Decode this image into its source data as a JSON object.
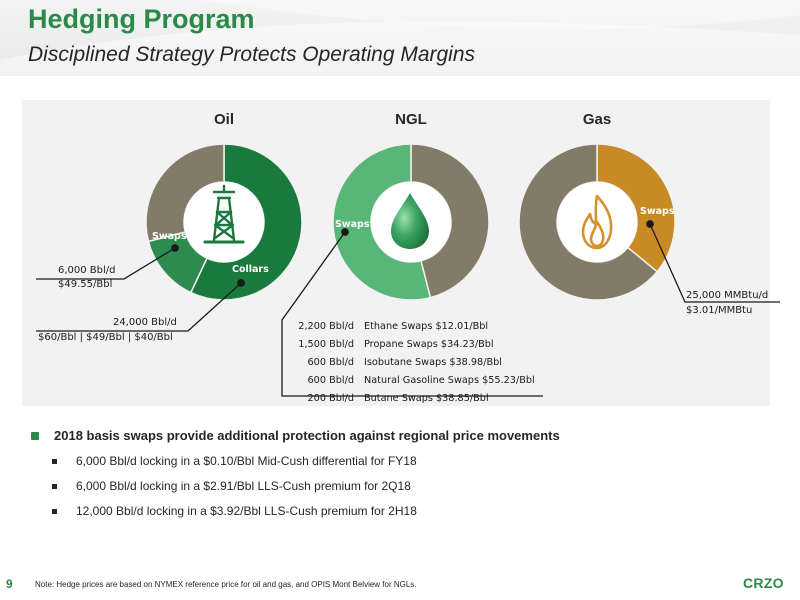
{
  "header": {
    "title": "Hedging Program",
    "subtitle": "Disciplined Strategy Protects Operating Margins"
  },
  "colors": {
    "brand_green": "#2a8a4a",
    "dark_green": "#1a7a3e",
    "light_green": "#58b678",
    "taupe": "#847a68",
    "gold": "#c88a24"
  },
  "icons": [
    "oil-derrick-icon",
    "droplet-icon",
    "flame-icon"
  ],
  "charts": [
    {
      "title": "Oil",
      "segments": [
        {
          "label": "Collars",
          "share": 0.57,
          "color": "#1a7a3e"
        },
        {
          "label": "Swaps",
          "share": 0.14,
          "color": "#2e8b50"
        },
        {
          "label": "",
          "share": 0.29,
          "color": "#847a68"
        }
      ],
      "callouts": [
        {
          "line1": "6,000 Bbl/d",
          "line2": "$49.55/Bbl"
        },
        {
          "line1": "24,000 Bbl/d",
          "line2": "$60/Bbl | $49/Bbl | $40/Bbl"
        }
      ]
    },
    {
      "title": "NGL",
      "segments": [
        {
          "label": "",
          "share": 0.46,
          "color": "#847a68"
        },
        {
          "label": "Swaps",
          "share": 0.54,
          "color": "#58b678"
        }
      ],
      "table": [
        {
          "volume": "2,200 Bbl/d",
          "desc": "Ethane Swaps $12.01/Bbl"
        },
        {
          "volume": "1,500 Bbl/d",
          "desc": "Propane Swaps $34.23/Bbl"
        },
        {
          "volume": "600 Bbl/d",
          "desc": "Isobutane Swaps $38.98/Bbl"
        },
        {
          "volume": "600 Bbl/d",
          "desc": "Natural Gasoline Swaps $55.23/Bbl"
        },
        {
          "volume": "200 Bbl/d",
          "desc": "Butane Swaps $38.85/Bbl"
        }
      ]
    },
    {
      "title": "Gas",
      "segments": [
        {
          "label": "Swaps",
          "share": 0.36,
          "color": "#c88a24"
        },
        {
          "label": "",
          "share": 0.64,
          "color": "#847a68"
        }
      ],
      "callouts": [
        {
          "line1": "25,000 MMBtu/d",
          "line2": "$3.01/MMBtu"
        }
      ]
    }
  ],
  "bullets": {
    "main": "2018 basis swaps provide additional protection against regional price movements",
    "sub": [
      "6,000 Bbl/d locking in a $0.10/Bbl Mid-Cush differential for FY18",
      "6,000 Bbl/d locking in a $2.91/Bbl LLS-Cush premium for 2Q18",
      "12,000 Bbl/d locking in a $3.92/Bbl LLS-Cush premium for 2H18"
    ]
  },
  "footer": {
    "note": "Note: Hedge prices are based on NYMEX reference price for oil and gas, and OPIS Mont Belview for NGLs.",
    "page_number": "9",
    "logo_text": "CRZO"
  }
}
